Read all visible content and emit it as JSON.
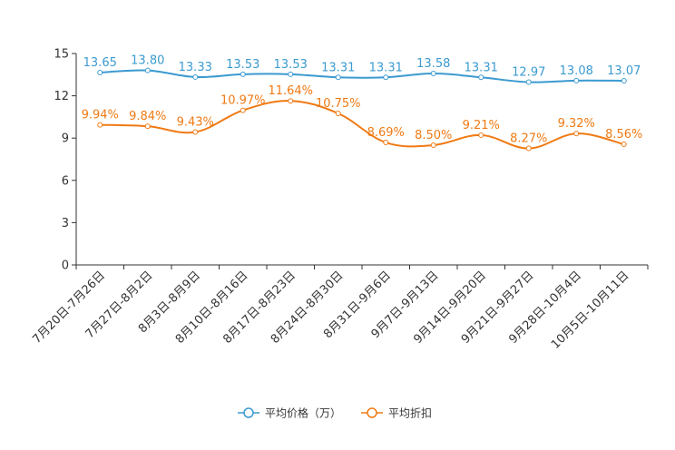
{
  "chart_data": {
    "type": "line",
    "title": "",
    "xlabel": "",
    "ylabel": "",
    "ylim": [
      0,
      15
    ],
    "yticks": [
      0,
      3,
      6,
      9,
      12,
      15
    ],
    "grid": false,
    "legend_position": "bottom-center",
    "categories": [
      "7月20日-7月26日",
      "7月27日-8月2日",
      "8月3日-8月9日",
      "8月10日-8月16日",
      "8月17日-8月23日",
      "8月24日-8月30日",
      "8月31日-9月6日",
      "9月7日-9月13日",
      "9月14日-9月20日",
      "9月21日-9月27日",
      "9月28日-10月4日",
      "10月5日-10月11日"
    ],
    "series": [
      {
        "name": "平均价格（万）",
        "color": "#3b9ad0",
        "values": [
          13.65,
          13.8,
          13.33,
          13.53,
          13.53,
          13.31,
          13.31,
          13.58,
          13.31,
          12.97,
          13.08,
          13.07
        ],
        "labels": [
          "13.65",
          "13.80",
          "13.33",
          "13.53",
          "13.53",
          "13.31",
          "13.31",
          "13.58",
          "13.31",
          "12.97",
          "13.08",
          "13.07"
        ]
      },
      {
        "name": "平均折扣",
        "color": "#f07a14",
        "values": [
          9.94,
          9.84,
          9.43,
          10.97,
          11.64,
          10.75,
          8.69,
          8.5,
          9.21,
          8.27,
          9.32,
          8.56
        ],
        "labels": [
          "9.94%",
          "9.84%",
          "9.43%",
          "10.97%",
          "11.64%",
          "10.75%",
          "8.69%",
          "8.50%",
          "9.21%",
          "8.27%",
          "9.32%",
          "8.56%"
        ]
      }
    ]
  }
}
